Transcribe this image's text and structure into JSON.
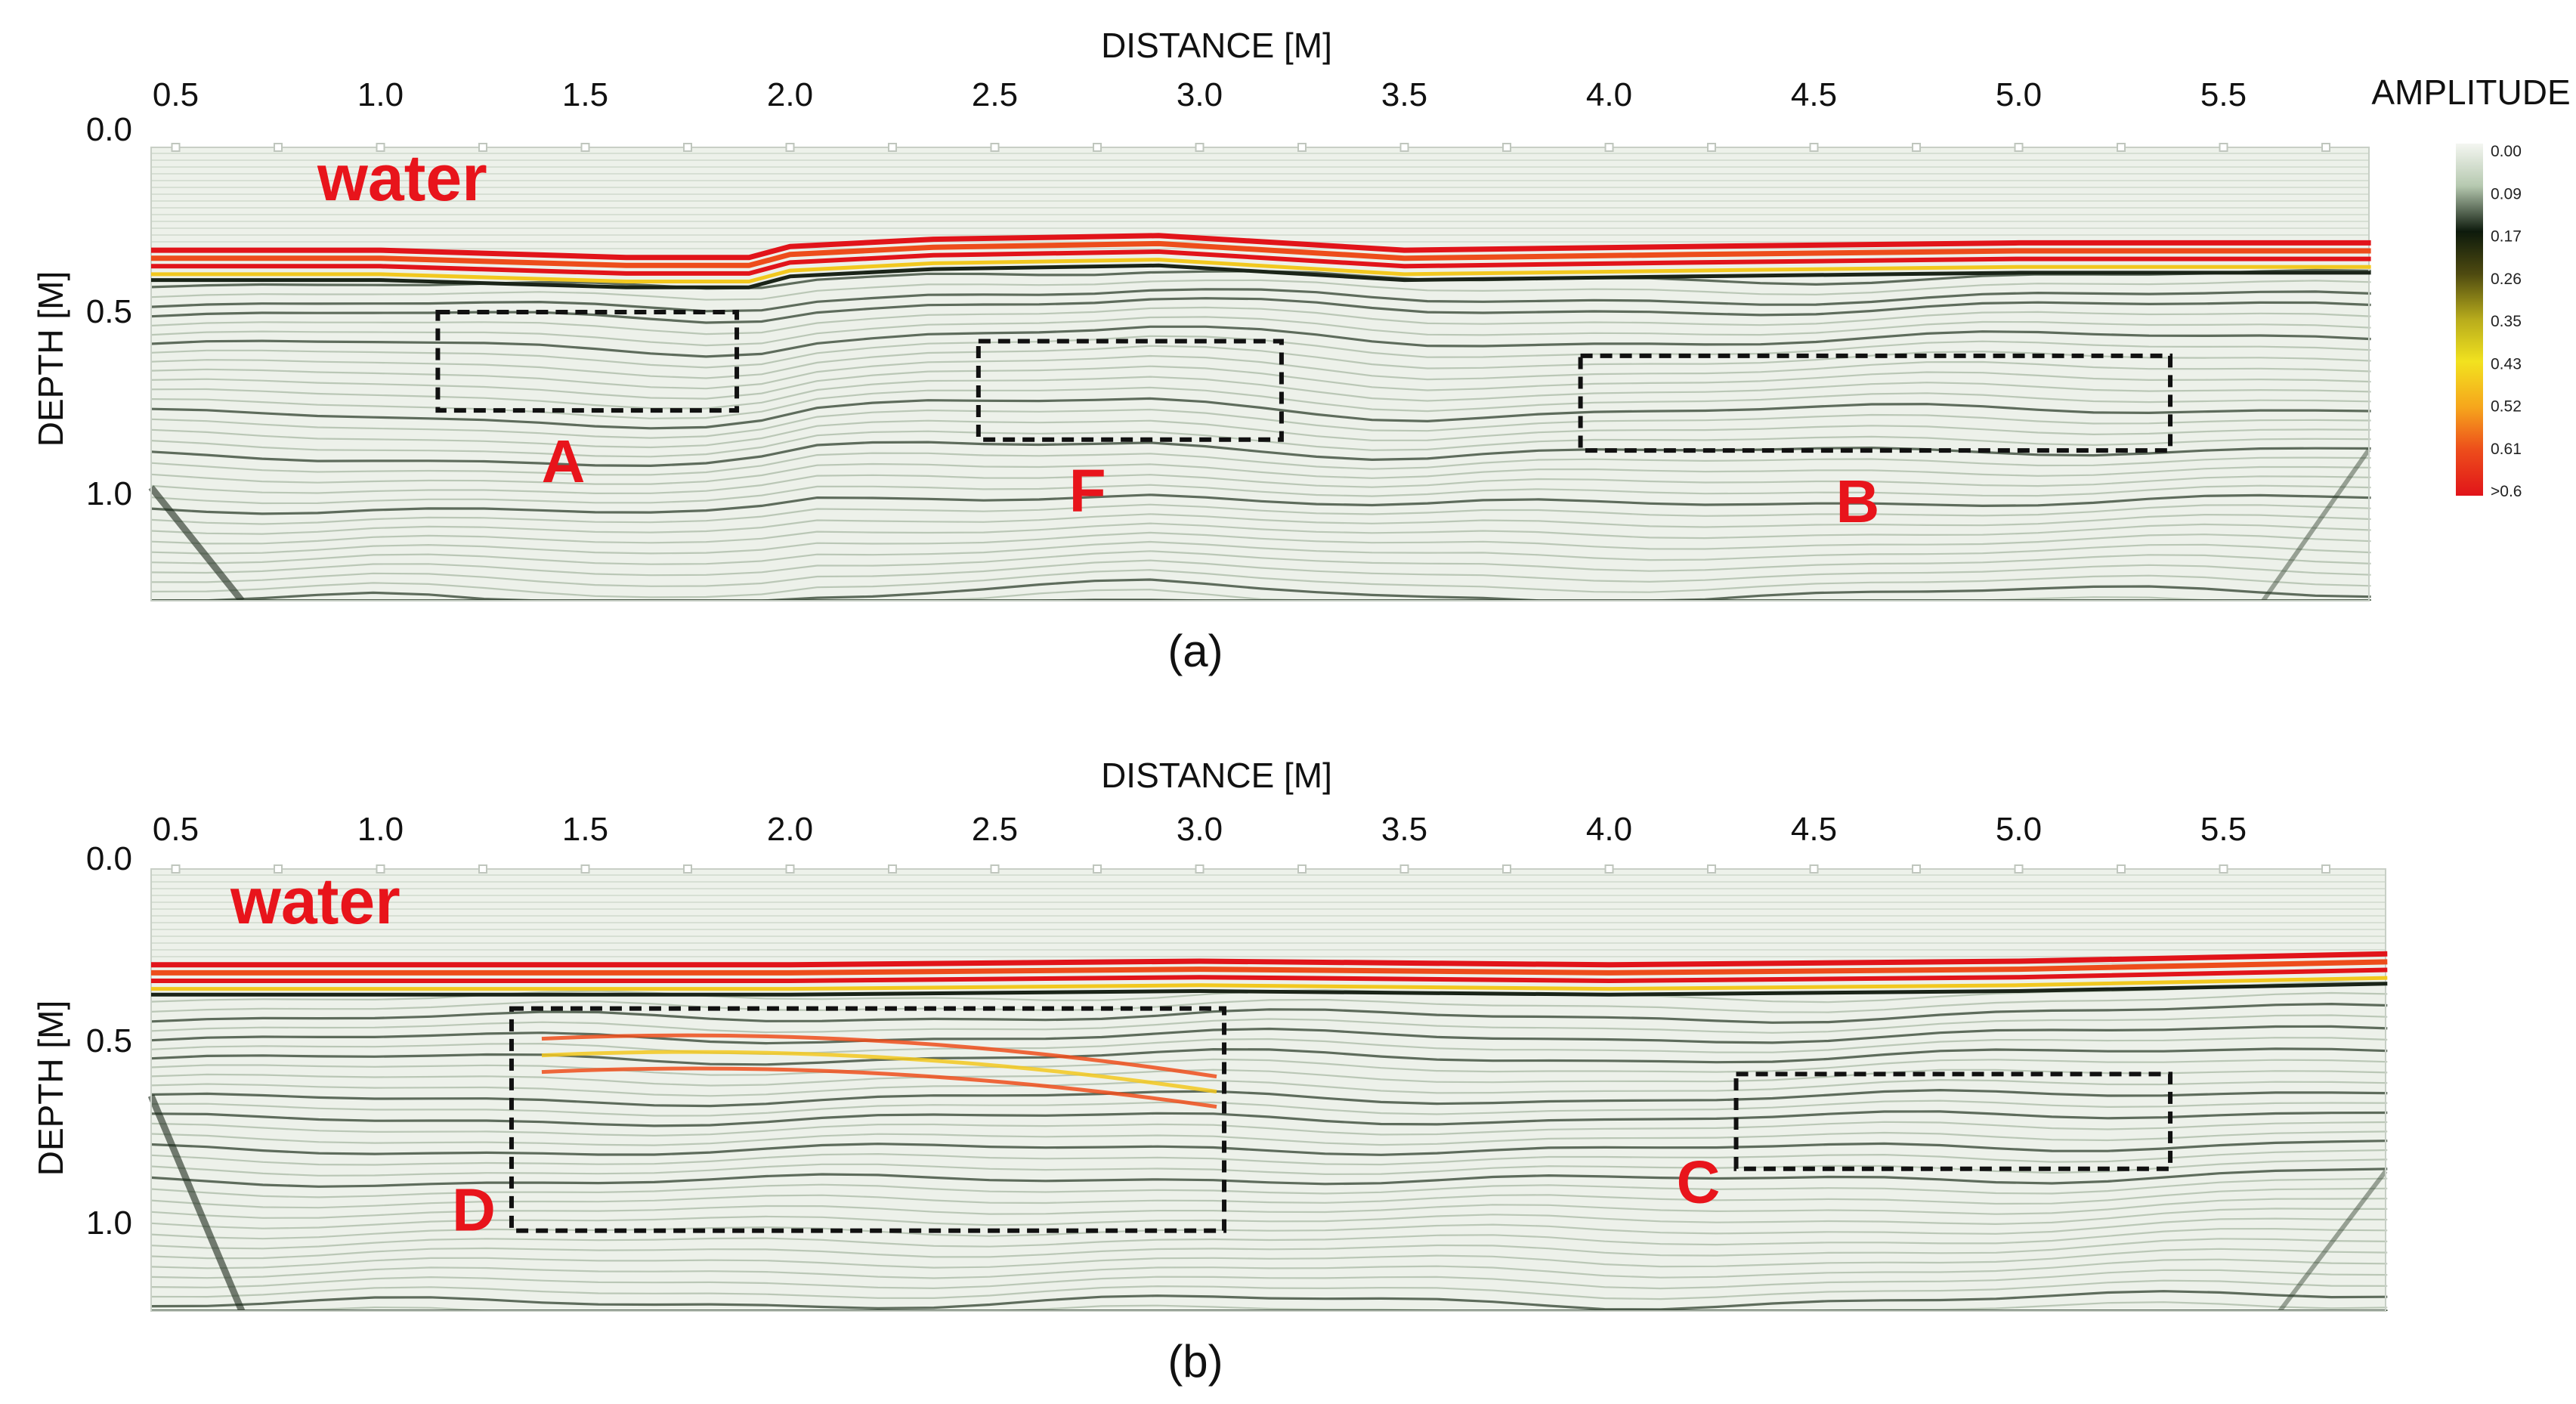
{
  "chart_data": [
    {
      "type": "heatmap",
      "panel": "(a)",
      "caption": "(a)",
      "xlabel": "DISTANCE [M]",
      "ylabel": "DEPTH [M]",
      "x_ticks": [
        "0.5",
        "1.0",
        "1.5",
        "2.0",
        "2.5",
        "3.0",
        "3.5",
        "4.0",
        "4.5",
        "5.0",
        "5.5"
      ],
      "x_tick_values": [
        0.5,
        1.0,
        1.5,
        2.0,
        2.5,
        3.0,
        3.5,
        4.0,
        4.5,
        5.0,
        5.5
      ],
      "y_ticks": [
        "0.0",
        "0.5",
        "1.0"
      ],
      "y_tick_values": [
        0.0,
        0.5,
        1.0
      ],
      "xlim": [
        0.44,
        5.86
      ],
      "ylim": [
        0.0,
        1.25
      ],
      "water_label": "water",
      "interface_depth": [
        [
          0.44,
          0.36
        ],
        [
          1.0,
          0.36
        ],
        [
          1.6,
          0.38
        ],
        [
          1.9,
          0.38
        ],
        [
          2.0,
          0.35
        ],
        [
          2.35,
          0.33
        ],
        [
          2.9,
          0.32
        ],
        [
          3.5,
          0.36
        ],
        [
          4.2,
          0.35
        ],
        [
          5.0,
          0.34
        ],
        [
          5.86,
          0.34
        ]
      ],
      "anomalies": [
        {
          "label": "A",
          "x_range": [
            1.14,
            1.87
          ],
          "depth_range": [
            0.5,
            0.77
          ]
        },
        {
          "label": "F",
          "x_range": [
            2.46,
            3.2
          ],
          "depth_range": [
            0.58,
            0.85
          ]
        },
        {
          "label": "B",
          "x_range": [
            3.93,
            5.37
          ],
          "depth_range": [
            0.62,
            0.88
          ]
        }
      ]
    },
    {
      "type": "heatmap",
      "panel": "(b)",
      "caption": "(b)",
      "xlabel": "DISTANCE [M]",
      "ylabel": "DEPTH [M]",
      "x_ticks": [
        "0.5",
        "1.0",
        "1.5",
        "2.0",
        "2.5",
        "3.0",
        "3.5",
        "4.0",
        "4.5",
        "5.0",
        "5.5"
      ],
      "x_tick_values": [
        0.5,
        1.0,
        1.5,
        2.0,
        2.5,
        3.0,
        3.5,
        4.0,
        4.5,
        5.0,
        5.5
      ],
      "y_ticks": [
        "0.0",
        "0.5",
        "1.0"
      ],
      "y_tick_values": [
        0.0,
        0.5,
        1.0
      ],
      "xlim": [
        0.44,
        5.9
      ],
      "ylim": [
        0.0,
        1.25
      ],
      "water_label": "water",
      "interface_depth": [
        [
          0.44,
          0.32
        ],
        [
          2.0,
          0.32
        ],
        [
          3.0,
          0.31
        ],
        [
          4.0,
          0.32
        ],
        [
          5.0,
          0.31
        ],
        [
          5.9,
          0.29
        ]
      ],
      "anomalies": [
        {
          "label": "D",
          "x_range": [
            1.32,
            3.06
          ],
          "depth_range": [
            0.41,
            1.02
          ]
        },
        {
          "label": "C",
          "x_range": [
            4.31,
            5.37
          ],
          "depth_range": [
            0.59,
            0.85
          ]
        }
      ]
    }
  ],
  "colorbar": {
    "title": "AMPLITUDE",
    "labels": [
      "0.00",
      "0.09",
      "0.17",
      "0.26",
      "0.35",
      "0.43",
      "0.52",
      "0.61",
      ">0.6"
    ],
    "colors": [
      "#f4f6f1",
      "#b6c9b0",
      "#0d1a0c",
      "#4e4a10",
      "#b8ac1c",
      "#f2e21f",
      "#f6a51c",
      "#ed4d1b",
      "#e1141a"
    ]
  }
}
